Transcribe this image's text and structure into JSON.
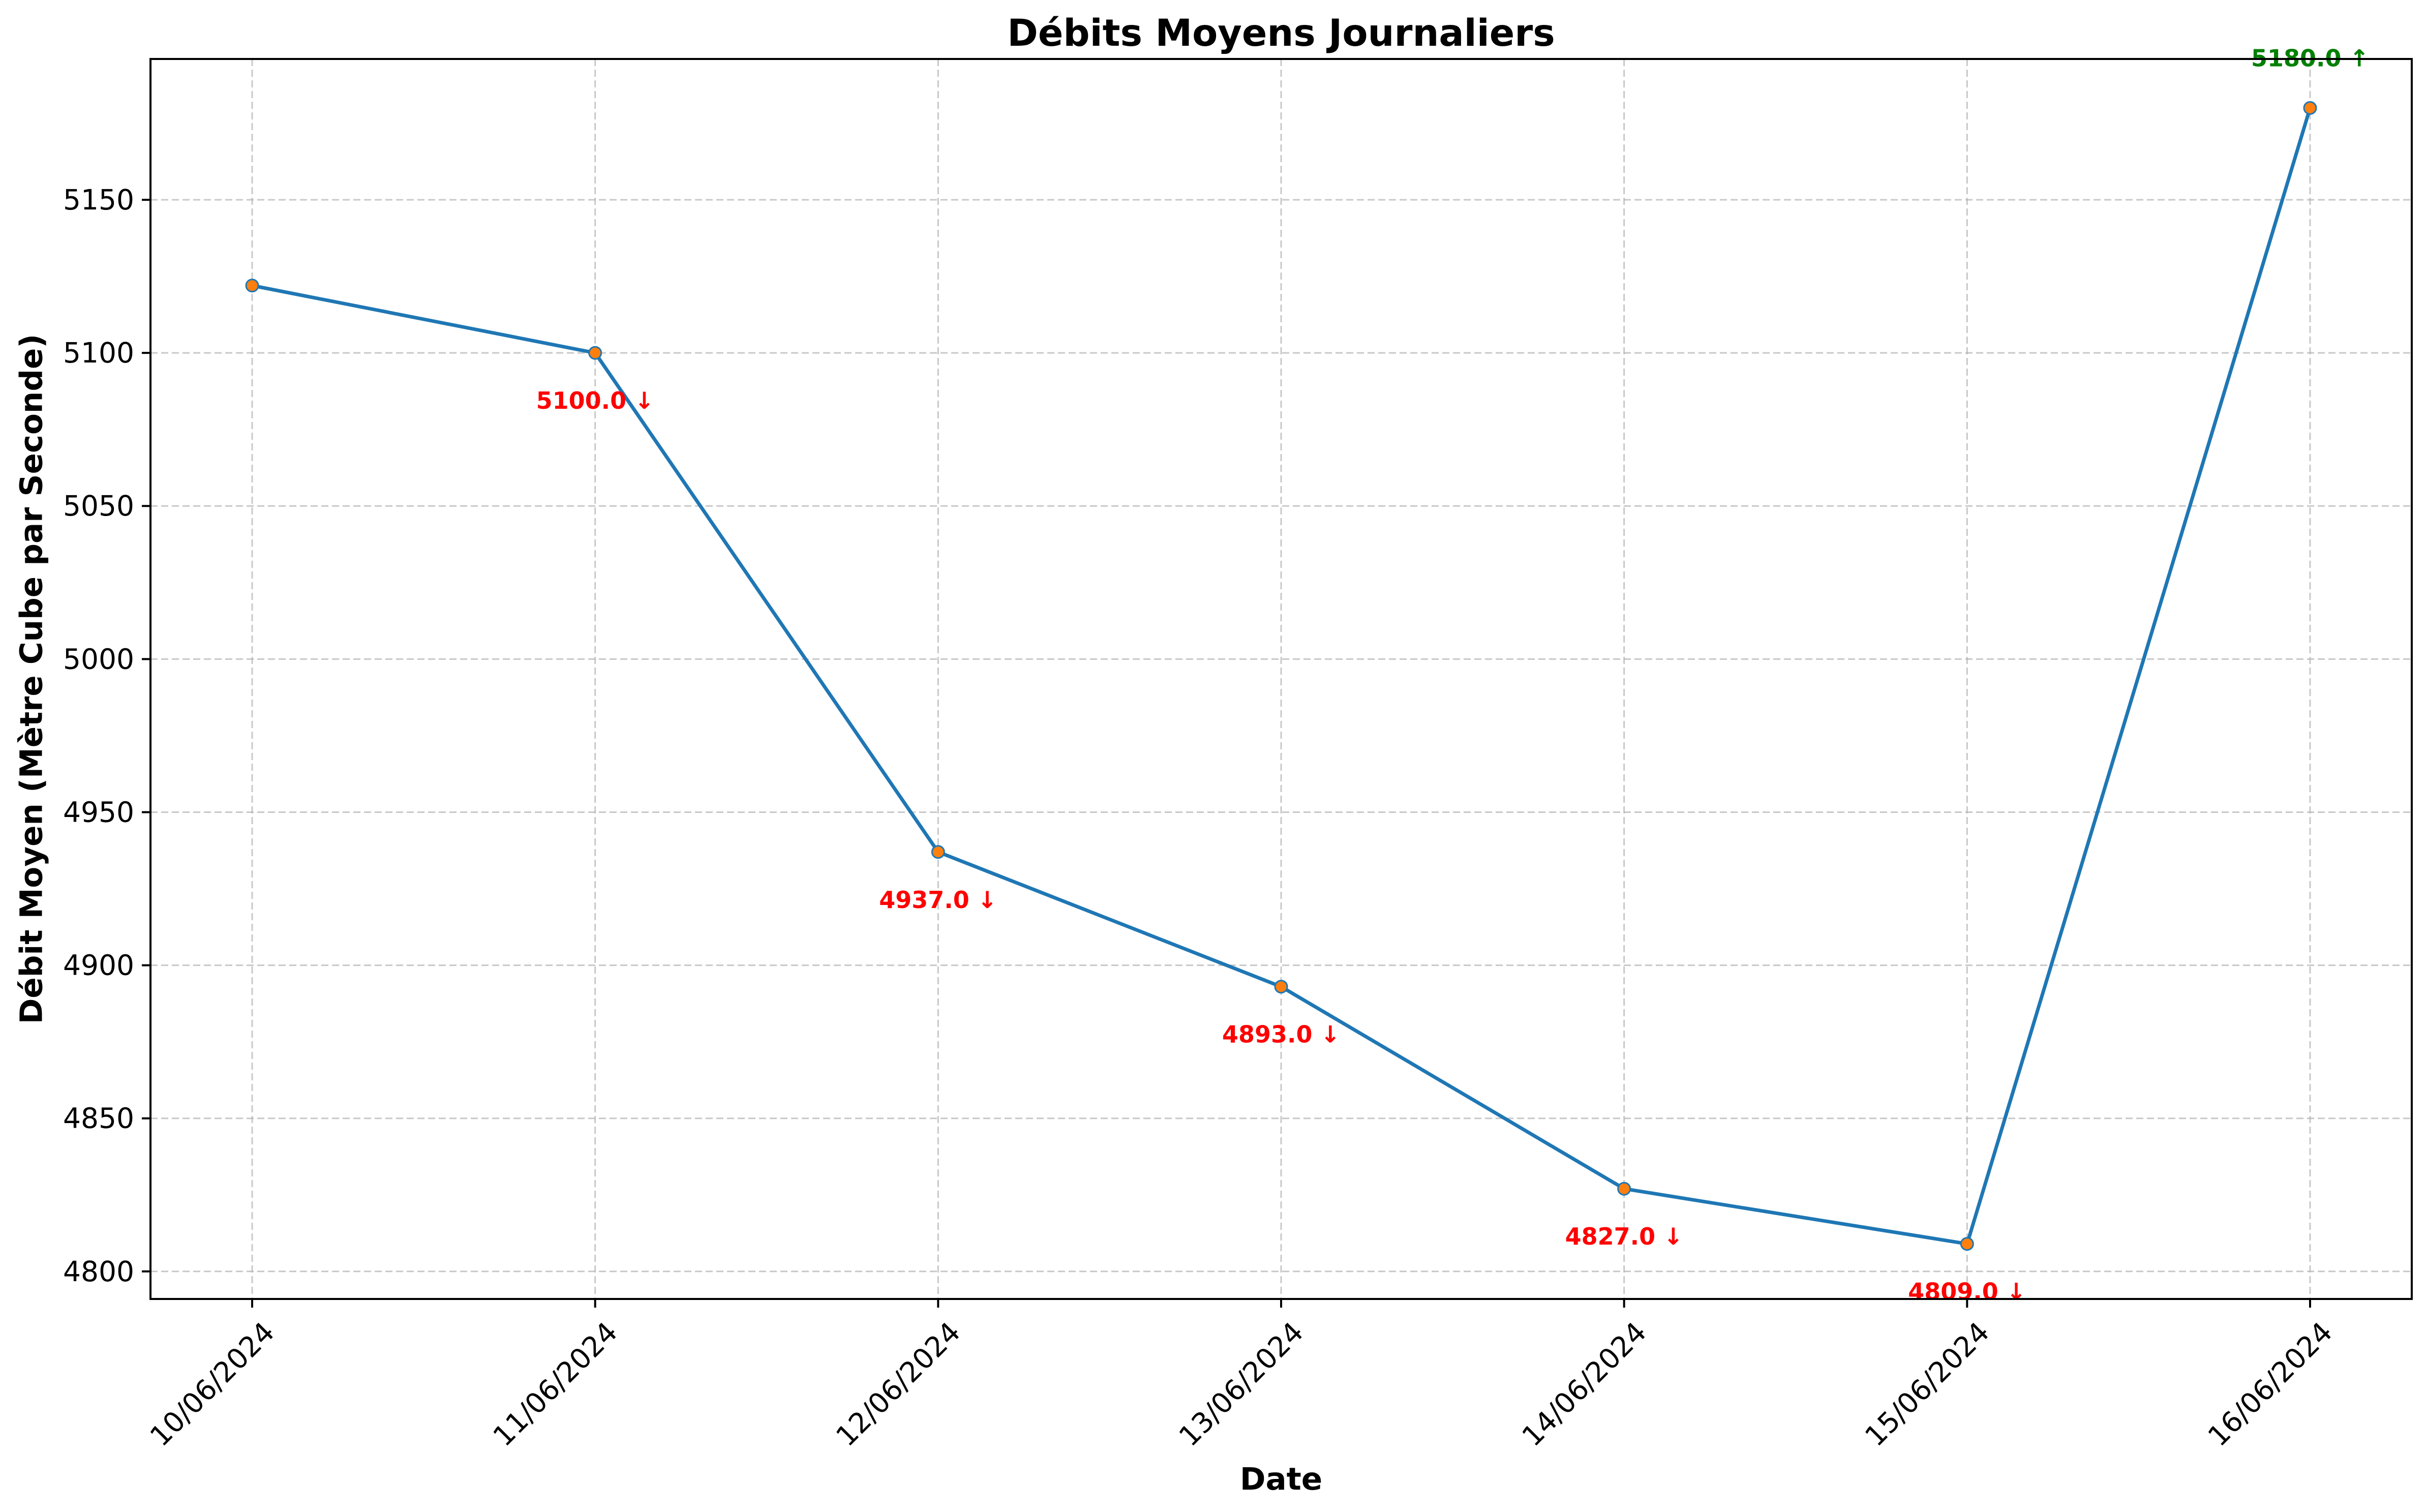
{
  "chart_data": {
    "type": "line",
    "title": "Débits Moyens Journaliers",
    "xlabel": "Date",
    "ylabel": "Débit Moyen (Mètre Cube par Seconde)",
    "categories": [
      "10/06/2024",
      "11/06/2024",
      "12/06/2024",
      "13/06/2024",
      "14/06/2024",
      "15/06/2024",
      "16/06/2024"
    ],
    "series": [
      {
        "values": [
          5122,
          5100,
          4937,
          4893,
          4827,
          4809,
          5180
        ]
      }
    ],
    "ylim": [
      4791,
      5196
    ],
    "yticks": [
      4800,
      4850,
      4900,
      4950,
      5000,
      5050,
      5100,
      5150
    ],
    "grid": true,
    "annotations": [
      {
        "index": 1,
        "text": "5100.0 ↓",
        "direction": "down"
      },
      {
        "index": 2,
        "text": "4937.0 ↓",
        "direction": "down"
      },
      {
        "index": 3,
        "text": "4893.0 ↓",
        "direction": "down"
      },
      {
        "index": 4,
        "text": "4827.0 ↓",
        "direction": "down"
      },
      {
        "index": 5,
        "text": "4809.0 ↓",
        "direction": "down"
      },
      {
        "index": 6,
        "text": "5180.0 ↑",
        "direction": "up"
      }
    ],
    "colors": {
      "line": "#1f77b4",
      "marker": "#ff7f0e",
      "down": "#ff0000",
      "up": "#008000",
      "grid": "#b0b0b0",
      "axes": "#000000"
    }
  }
}
